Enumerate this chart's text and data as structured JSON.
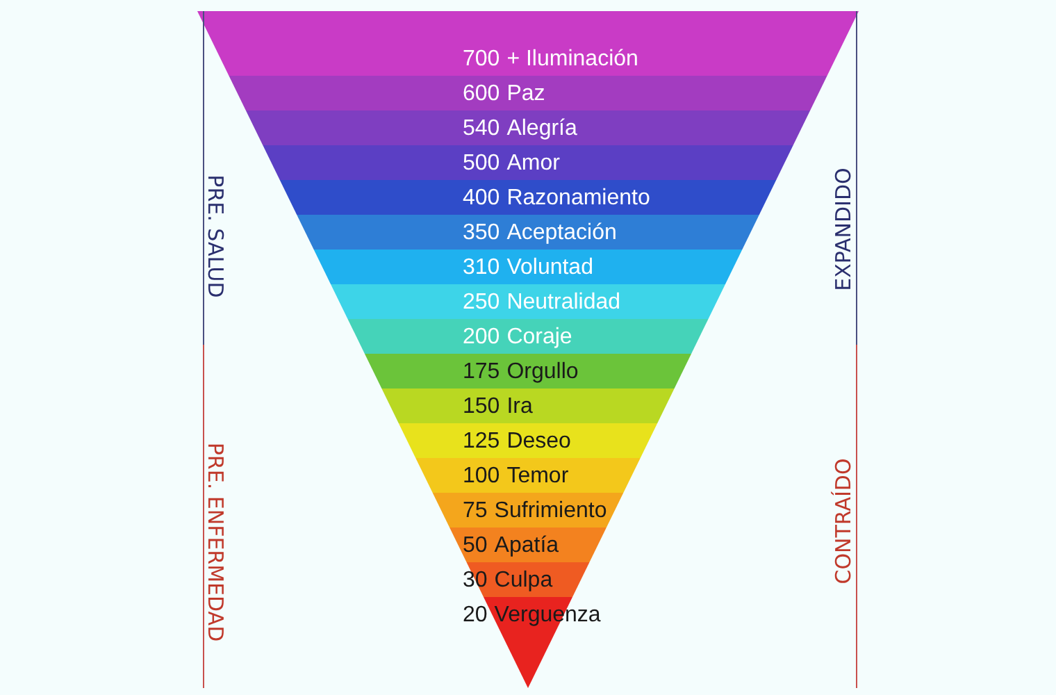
{
  "chart_data": {
    "type": "other",
    "categories": [
      "+ Iluminación",
      "Paz",
      "Alegría",
      "Amor",
      "Razonamiento",
      "Aceptación",
      "Voluntad",
      "Neutralidad",
      "Coraje",
      "Orgullo",
      "Ira",
      "Deseo",
      "Temor",
      "Sufrimiento",
      "Apatía",
      "Culpa",
      "Verguenza"
    ],
    "values": [
      700,
      600,
      540,
      500,
      400,
      350,
      310,
      250,
      200,
      175,
      150,
      125,
      100,
      75,
      50,
      30,
      20
    ],
    "data_labels": true,
    "colors": [
      "#c93bc6",
      "#a33cc0",
      "#7f3ec1",
      "#5b3fc4",
      "#2f4dca",
      "#2e7ed6",
      "#1fb1ef",
      "#3dd4e8",
      "#45d3b9",
      "#6bc43a",
      "#b9d822",
      "#e8e21c",
      "#f3c81b",
      "#f4a61c",
      "#f3821f",
      "#ef5b22",
      "#e8231f"
    ],
    "annotations": [
      "PRE. SALUD",
      "PRE. ENFERMEDAD",
      "EXPANDIDO",
      "CONTRAÍDO"
    ]
  }
}
